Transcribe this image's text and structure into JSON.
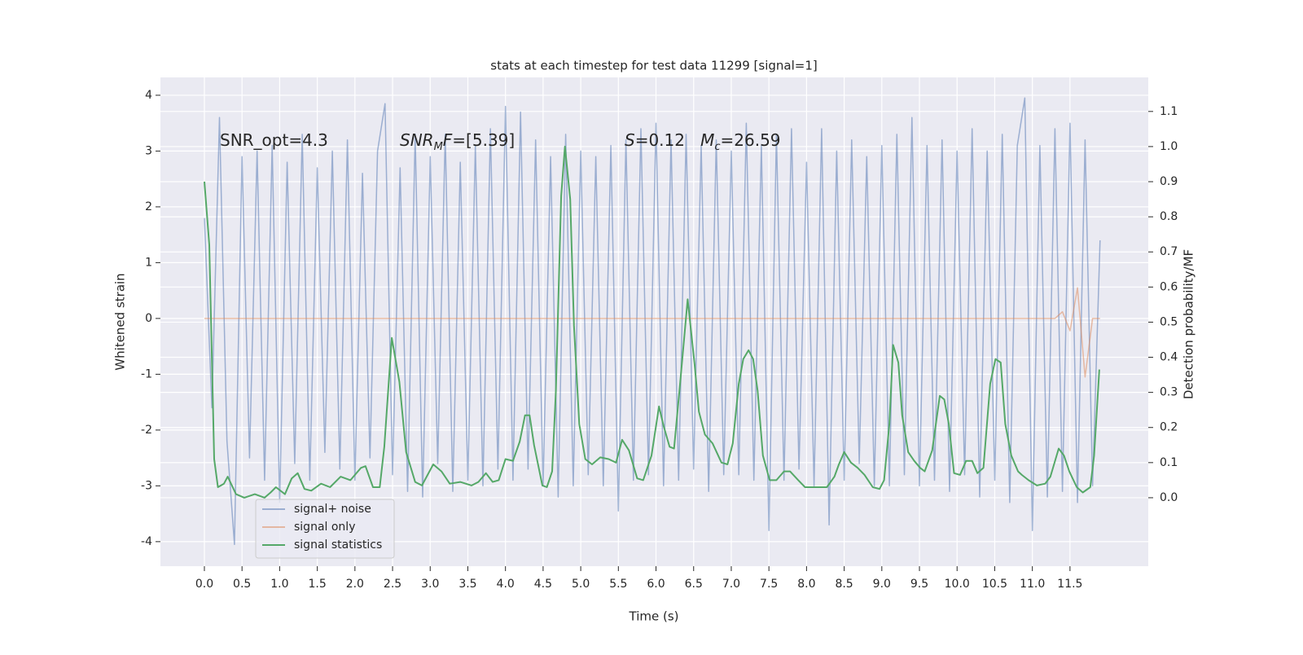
{
  "chart_data": {
    "type": "line",
    "title": "stats at each timestep for test data 11299 [signal=1]",
    "x_label": "Time (s)",
    "y_label": "Whitened strain",
    "y2_label": "Detection probability/MF",
    "xlim": [
      -0.584,
      12.54
    ],
    "ylim": [
      -4.44,
      4.32
    ],
    "y2lim": [
      -0.195,
      1.197
    ],
    "xticks": [
      {
        "value": 0,
        "label": "0.0"
      },
      0.5,
      {
        "value": 1,
        "label": "1.0"
      },
      1.5,
      {
        "value": 2,
        "label": "2.0"
      },
      2.5,
      {
        "value": 3,
        "label": "3.0"
      },
      3.5,
      {
        "value": 4,
        "label": "4.0"
      },
      4.5,
      {
        "value": 5,
        "label": "5.0"
      },
      5.5,
      {
        "value": 6,
        "label": "6.0"
      },
      6.5,
      {
        "value": 7,
        "label": "7.0"
      },
      7.5,
      {
        "value": 8,
        "label": "8.0"
      },
      8.5,
      {
        "value": 9,
        "label": "9.0"
      },
      9.5,
      {
        "value": 10,
        "label": "10.0"
      },
      10.5,
      {
        "value": 11,
        "label": "11.0"
      },
      11.5
    ],
    "yticks": [
      -4,
      -3,
      -2,
      -1,
      0,
      1,
      2,
      3,
      4
    ],
    "y2ticks": [
      {
        "value": 0,
        "label": "0.0"
      },
      0.1,
      0.2,
      0.3,
      0.4,
      0.5,
      0.6,
      0.7,
      0.8,
      0.9,
      {
        "value": 1,
        "label": "1.0"
      },
      1.1
    ],
    "grid": true,
    "legend": "lower left",
    "annotations": [
      [
        {
          "text": "SNR_opt=4.3",
          "style": "normal"
        }
      ],
      [
        {
          "text": "SNR",
          "style": "italic"
        },
        {
          "text": "M",
          "style": "sub"
        },
        {
          "text": "F",
          "style": "italic"
        },
        {
          "text": "=[5.39]",
          "style": "normal"
        }
      ],
      [
        {
          "text": "S",
          "style": "italic"
        },
        {
          "text": "=0.12   ",
          "style": "normal"
        },
        {
          "text": "M",
          "style": "italic"
        },
        {
          "text": "c",
          "style": "sub"
        },
        {
          "text": "=26.59",
          "style": "normal"
        }
      ]
    ],
    "x": [
      0.0,
      0.1,
      0.2,
      0.3,
      0.4,
      0.5,
      0.6,
      0.7,
      0.8,
      0.9,
      1.0,
      1.1,
      1.2,
      1.3,
      1.4,
      1.5,
      1.6,
      1.7,
      1.8,
      1.9,
      2.0,
      2.1,
      2.2,
      2.3,
      2.4,
      2.5,
      2.6,
      2.7,
      2.8,
      2.9,
      3.0,
      3.1,
      3.2,
      3.3,
      3.4,
      3.5,
      3.6,
      3.7,
      3.8,
      3.9,
      4.0,
      4.1,
      4.2,
      4.3,
      4.4,
      4.5,
      4.6,
      4.7,
      4.8,
      4.9,
      5.0,
      5.1,
      5.2,
      5.3,
      5.4,
      5.5,
      5.6,
      5.7,
      5.8,
      5.9,
      6.0,
      6.1,
      6.2,
      6.3,
      6.4,
      6.5,
      6.6,
      6.7,
      6.8,
      6.9,
      7.0,
      7.1,
      7.2,
      7.3,
      7.4,
      7.5,
      7.6,
      7.7,
      7.8,
      7.9,
      8.0,
      8.1,
      8.2,
      8.3,
      8.4,
      8.5,
      8.6,
      8.7,
      8.8,
      8.9,
      9.0,
      9.1,
      9.2,
      9.3,
      9.4,
      9.5,
      9.6,
      9.7,
      9.8,
      9.9,
      10.0,
      10.1,
      10.2,
      10.3,
      10.4,
      10.5,
      10.6,
      10.7,
      10.8,
      10.9,
      11.0,
      11.1,
      11.2,
      11.3,
      11.4,
      11.5,
      11.6,
      11.7,
      11.8,
      11.9
    ],
    "series": [
      {
        "name": "signal+ noise",
        "color": "#4c72b0",
        "values": [
          1.8,
          -1.6,
          3.6,
          -2.2,
          -4.05,
          2.9,
          -2.5,
          3.0,
          -2.9,
          3.1,
          -3.3,
          2.8,
          -2.6,
          3.3,
          -2.9,
          2.7,
          -2.4,
          3.0,
          -2.7,
          3.2,
          -2.9,
          2.6,
          -2.5,
          3.0,
          3.85,
          -2.8,
          2.7,
          -3.1,
          3.3,
          -3.2,
          2.9,
          -2.6,
          3.3,
          -3.1,
          2.8,
          -2.9,
          3.1,
          -3.0,
          3.4,
          -2.7,
          3.8,
          -2.9,
          3.7,
          -2.7,
          3.2,
          -3.0,
          2.9,
          -3.2,
          3.3,
          -3.0,
          3.0,
          -2.8,
          2.9,
          -3.0,
          3.1,
          -3.45,
          3.2,
          -2.9,
          3.4,
          -2.8,
          3.5,
          -3.0,
          3.2,
          -2.9,
          3.3,
          -2.7,
          3.1,
          -3.1,
          3.2,
          -2.8,
          3.0,
          -2.8,
          3.5,
          -2.9,
          3.1,
          -3.8,
          3.3,
          -2.9,
          3.4,
          -2.7,
          2.8,
          -3.0,
          3.4,
          -3.7,
          3.0,
          -2.9,
          3.2,
          -2.6,
          2.9,
          -3.0,
          3.1,
          -3.0,
          3.3,
          -2.8,
          3.6,
          -3.0,
          3.1,
          -2.9,
          3.2,
          -3.1,
          3.0,
          -2.8,
          3.4,
          -3.2,
          3.0,
          -2.9,
          3.3,
          -3.3,
          3.1,
          3.95,
          -3.8,
          3.1,
          -3.2,
          3.4,
          -3.1,
          3.5,
          -3.3,
          3.2,
          -3.0,
          1.4
        ]
      },
      {
        "name": "signal only",
        "color": "#dd8452",
        "values": [
          0,
          0,
          0,
          0,
          0,
          0,
          0,
          0,
          0,
          0,
          0,
          0,
          0,
          0,
          0,
          0,
          0,
          0,
          0,
          0,
          0,
          0,
          0,
          0,
          0,
          0,
          0,
          0,
          0,
          0,
          0,
          0,
          0,
          0,
          0,
          0,
          0,
          0,
          0,
          0,
          0,
          0,
          0,
          0,
          0,
          0,
          0,
          0,
          0,
          0,
          0,
          0,
          0,
          0,
          0,
          0,
          0,
          0,
          0,
          0,
          0,
          0,
          0,
          0,
          0,
          0,
          0,
          0,
          0,
          0,
          0,
          0,
          0,
          0,
          0,
          0,
          0,
          0,
          0,
          0,
          0,
          0,
          0,
          0,
          0,
          0,
          0,
          0,
          0,
          0,
          0,
          0,
          0,
          0,
          0,
          0,
          0,
          0,
          0,
          0,
          0,
          0,
          0,
          0,
          0,
          0,
          0,
          0,
          0,
          0,
          0,
          0,
          0,
          0,
          0.12,
          -0.22,
          0.55,
          -1.05,
          0,
          0
        ]
      },
      {
        "name": "signal statistics",
        "color": "#55a868",
        "axis": "y2",
        "x": [
          0.0,
          0.065,
          0.13,
          0.18,
          0.26,
          0.31,
          0.42,
          0.53,
          0.67,
          0.8,
          0.88,
          0.95,
          1.07,
          1.16,
          1.24,
          1.33,
          1.42,
          1.55,
          1.67,
          1.81,
          1.94,
          2.08,
          2.14,
          2.24,
          2.33,
          2.39,
          2.49,
          2.59,
          2.68,
          2.8,
          2.89,
          3.04,
          3.15,
          3.26,
          3.4,
          3.55,
          3.64,
          3.74,
          3.83,
          3.91,
          4.0,
          4.1,
          4.19,
          4.26,
          4.32,
          4.38,
          4.49,
          4.55,
          4.62,
          4.67,
          4.74,
          4.79,
          4.86,
          4.91,
          4.98,
          5.06,
          5.15,
          5.26,
          5.37,
          5.47,
          5.55,
          5.64,
          5.75,
          5.83,
          5.94,
          6.04,
          6.1,
          6.18,
          6.24,
          6.32,
          6.42,
          6.51,
          6.57,
          6.65,
          6.75,
          6.87,
          6.95,
          7.02,
          7.1,
          7.16,
          7.23,
          7.29,
          7.35,
          7.42,
          7.51,
          7.6,
          7.7,
          7.78,
          7.89,
          7.98,
          8.08,
          8.18,
          8.27,
          8.37,
          8.43,
          8.5,
          8.59,
          8.68,
          8.77,
          8.88,
          8.97,
          9.03,
          9.1,
          9.15,
          9.22,
          9.27,
          9.35,
          9.43,
          9.51,
          9.57,
          9.67,
          9.77,
          9.83,
          9.89,
          9.96,
          10.04,
          10.12,
          10.2,
          10.27,
          10.35,
          10.44,
          10.51,
          10.58,
          10.64,
          10.72,
          10.81,
          10.86,
          10.95,
          11.06,
          11.17,
          11.24,
          11.35,
          11.42,
          11.49,
          11.59,
          11.67,
          11.77,
          11.82,
          11.89
        ],
        "values": [
          0.9,
          0.72,
          0.11,
          0.03,
          0.04,
          0.06,
          0.01,
          0.0,
          0.01,
          0.0,
          0.015,
          0.03,
          0.01,
          0.055,
          0.07,
          0.025,
          0.02,
          0.04,
          0.03,
          0.06,
          0.05,
          0.085,
          0.09,
          0.03,
          0.03,
          0.145,
          0.455,
          0.33,
          0.13,
          0.045,
          0.035,
          0.095,
          0.075,
          0.04,
          0.045,
          0.035,
          0.045,
          0.07,
          0.045,
          0.05,
          0.11,
          0.105,
          0.16,
          0.235,
          0.235,
          0.15,
          0.035,
          0.03,
          0.075,
          0.305,
          0.86,
          1.0,
          0.85,
          0.49,
          0.21,
          0.11,
          0.095,
          0.115,
          0.11,
          0.1,
          0.165,
          0.135,
          0.055,
          0.05,
          0.12,
          0.26,
          0.205,
          0.145,
          0.14,
          0.325,
          0.565,
          0.385,
          0.245,
          0.18,
          0.155,
          0.1,
          0.095,
          0.155,
          0.325,
          0.395,
          0.42,
          0.395,
          0.305,
          0.12,
          0.05,
          0.05,
          0.075,
          0.075,
          0.05,
          0.03,
          0.03,
          0.03,
          0.03,
          0.06,
          0.095,
          0.13,
          0.1,
          0.085,
          0.065,
          0.03,
          0.025,
          0.05,
          0.21,
          0.435,
          0.385,
          0.235,
          0.13,
          0.105,
          0.085,
          0.075,
          0.135,
          0.29,
          0.28,
          0.21,
          0.07,
          0.065,
          0.105,
          0.105,
          0.07,
          0.085,
          0.325,
          0.395,
          0.385,
          0.21,
          0.12,
          0.075,
          0.065,
          0.05,
          0.035,
          0.04,
          0.06,
          0.14,
          0.12,
          0.075,
          0.03,
          0.015,
          0.03,
          0.12,
          0.365
        ]
      }
    ]
  }
}
